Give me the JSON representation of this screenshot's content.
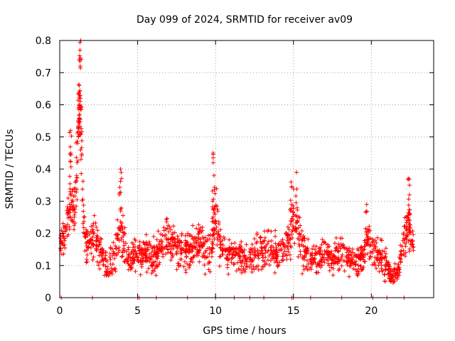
{
  "chart_data": {
    "type": "scatter",
    "title": "Day 099 of 2024, SRMTID for receiver av09",
    "xlabel": "GPS time / hours",
    "ylabel": "SRMTID / TECUs",
    "xlim": [
      0,
      24
    ],
    "ylim": [
      0,
      0.8
    ],
    "x_ticks": [
      0,
      5,
      10,
      15,
      20
    ],
    "x_tick_labels": [
      "0",
      "5",
      "10",
      "15",
      "20"
    ],
    "y_ticks": [
      0,
      0.1,
      0.2,
      0.3,
      0.4,
      0.5,
      0.6,
      0.7,
      0.8
    ],
    "y_tick_labels": [
      "0",
      "0.1",
      "0.2",
      "0.3",
      "0.4",
      "0.5",
      "0.6",
      "0.7",
      "0.8"
    ],
    "grid": true,
    "marker": "+",
    "marker_color": "#ff0000",
    "series": [
      {
        "name": "SRMTID",
        "profile": {
          "x": [
            0.0,
            0.3,
            0.6,
            0.8,
            1.0,
            1.2,
            1.3,
            1.5,
            1.7,
            2.0,
            2.3,
            2.6,
            3.0,
            3.5,
            3.9,
            4.1,
            4.5,
            5.0,
            5.5,
            6.0,
            6.5,
            6.9,
            7.2,
            7.6,
            8.0,
            8.5,
            9.0,
            9.4,
            9.8,
            10.0,
            10.3,
            10.8,
            11.3,
            11.8,
            12.3,
            12.8,
            13.2,
            13.6,
            14.0,
            14.5,
            14.8,
            15.0,
            15.3,
            15.6,
            16.0,
            16.5,
            17.0,
            17.5,
            18.0,
            18.5,
            19.0,
            19.5,
            19.8,
            20.2,
            20.6,
            21.0,
            21.3,
            21.7,
            22.0,
            22.3,
            22.7
          ],
          "y": [
            0.16,
            0.2,
            0.26,
            0.28,
            0.3,
            0.5,
            0.58,
            0.28,
            0.16,
            0.18,
            0.2,
            0.14,
            0.1,
            0.13,
            0.22,
            0.16,
            0.12,
            0.13,
            0.14,
            0.13,
            0.15,
            0.2,
            0.17,
            0.15,
            0.14,
            0.16,
            0.18,
            0.14,
            0.16,
            0.25,
            0.16,
            0.14,
            0.13,
            0.12,
            0.13,
            0.15,
            0.14,
            0.15,
            0.14,
            0.15,
            0.2,
            0.24,
            0.22,
            0.14,
            0.12,
            0.11,
            0.13,
            0.12,
            0.14,
            0.12,
            0.11,
            0.13,
            0.18,
            0.14,
            0.13,
            0.1,
            0.07,
            0.08,
            0.15,
            0.22,
            0.17
          ]
        },
        "spread": [
          0.04,
          0.05,
          0.06,
          0.06,
          0.08,
          0.12,
          0.14,
          0.08,
          0.05,
          0.06,
          0.06,
          0.05,
          0.04,
          0.05,
          0.08,
          0.06,
          0.04,
          0.05,
          0.05,
          0.05,
          0.05,
          0.06,
          0.06,
          0.05,
          0.05,
          0.05,
          0.06,
          0.05,
          0.06,
          0.1,
          0.06,
          0.05,
          0.05,
          0.04,
          0.05,
          0.05,
          0.05,
          0.05,
          0.05,
          0.05,
          0.08,
          0.08,
          0.07,
          0.05,
          0.04,
          0.04,
          0.04,
          0.04,
          0.05,
          0.04,
          0.04,
          0.05,
          0.05,
          0.05,
          0.05,
          0.04,
          0.03,
          0.03,
          0.05,
          0.07,
          0.05
        ],
        "peaks": [
          {
            "x": 1.35,
            "y": 0.8
          },
          {
            "x": 1.3,
            "y": 0.77
          },
          {
            "x": 1.25,
            "y": 0.66
          },
          {
            "x": 1.3,
            "y": 0.6
          },
          {
            "x": 1.2,
            "y": 0.55
          },
          {
            "x": 0.7,
            "y": 0.52
          },
          {
            "x": 0.7,
            "y": 0.45
          },
          {
            "x": 3.9,
            "y": 0.4
          },
          {
            "x": 9.85,
            "y": 0.45
          },
          {
            "x": 9.85,
            "y": 0.42
          },
          {
            "x": 9.9,
            "y": 0.38
          },
          {
            "x": 14.85,
            "y": 0.36
          },
          {
            "x": 15.2,
            "y": 0.39
          },
          {
            "x": 19.7,
            "y": 0.29
          },
          {
            "x": 22.4,
            "y": 0.37
          },
          {
            "x": 22.45,
            "y": 0.35
          }
        ],
        "zero_points": [
          0.1,
          2.1,
          5.0,
          5.1,
          6.2,
          8.2,
          10.0,
          11.2,
          12.2,
          13.1,
          14.9,
          15.0,
          16.1,
          18.1,
          20.1,
          21.0,
          22.1
        ]
      }
    ]
  }
}
